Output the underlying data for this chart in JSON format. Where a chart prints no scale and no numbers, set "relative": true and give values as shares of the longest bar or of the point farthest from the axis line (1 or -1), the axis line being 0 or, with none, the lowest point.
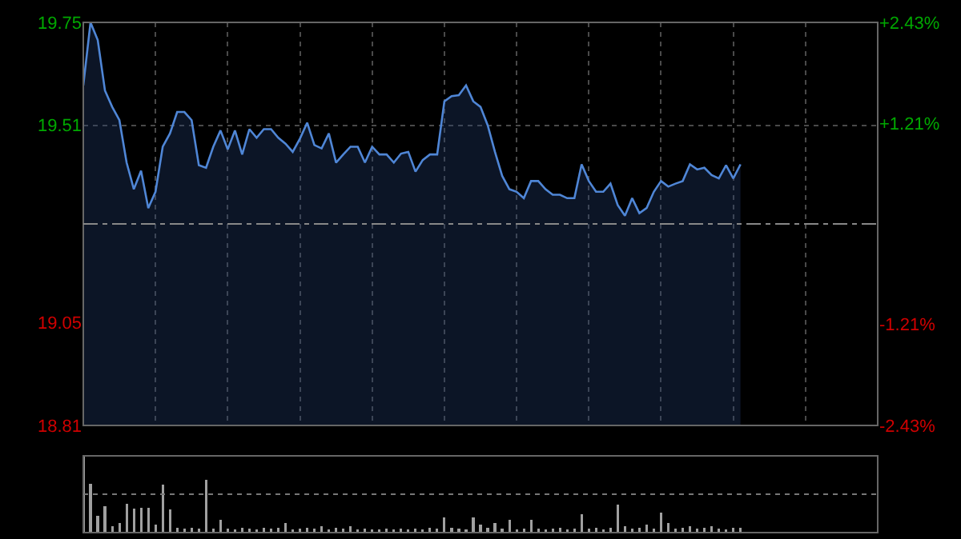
{
  "chart_data": [
    {
      "type": "area",
      "categories": [
        null,
        null,
        null,
        null,
        null,
        null,
        null,
        null,
        null,
        null,
        null,
        null,
        null,
        null,
        null,
        null,
        null,
        null,
        null,
        null,
        null,
        null,
        null,
        null,
        null,
        null,
        null,
        null,
        null,
        null,
        null,
        null,
        null,
        null,
        null,
        null,
        null,
        null,
        null,
        null,
        null,
        null,
        null,
        null,
        null,
        null,
        null,
        null,
        null,
        null,
        null,
        null,
        null,
        null,
        null,
        null,
        null,
        null,
        null,
        null,
        null,
        null,
        null,
        null,
        null,
        null,
        null,
        null,
        null,
        null,
        null,
        null,
        null,
        null,
        null,
        null,
        null,
        null,
        null,
        null,
        null,
        null,
        null,
        null,
        null,
        null,
        null,
        null,
        null,
        null,
        null,
        null,
        null,
        null,
        null,
        null,
        null,
        null,
        null,
        null,
        null,
        null,
        null,
        null,
        null,
        null,
        null,
        null,
        null,
        null,
        null
      ],
      "series": [
        {
          "color": "#4f86d6",
          "values": [
            19.603,
            19.75,
            19.709,
            19.591,
            19.553,
            19.522,
            19.423,
            19.361,
            19.404,
            19.317,
            19.355,
            19.46,
            19.491,
            19.541,
            19.541,
            19.522,
            19.417,
            19.411,
            19.46,
            19.498,
            19.454,
            19.498,
            19.442,
            19.501,
            19.481,
            19.501,
            19.501,
            19.481,
            19.467,
            19.448,
            19.479,
            19.516,
            19.464,
            19.456,
            19.491,
            19.423,
            19.442,
            19.46,
            19.46,
            19.423,
            19.46,
            19.442,
            19.442,
            19.423,
            19.444,
            19.448,
            19.402,
            19.429,
            19.442,
            19.442,
            19.566,
            19.578,
            19.58,
            19.603,
            19.566,
            19.553,
            19.51,
            19.448,
            19.392,
            19.361,
            19.355,
            19.34,
            19.38,
            19.38,
            19.361,
            19.348,
            19.348,
            19.34,
            19.34,
            19.419,
            19.38,
            19.355,
            19.355,
            19.374,
            19.324,
            19.299,
            19.34,
            19.305,
            19.317,
            19.355,
            19.38,
            19.367,
            19.374,
            19.38,
            19.419,
            19.407,
            19.411,
            19.394,
            19.386,
            19.417,
            19.386,
            19.419,
            null,
            null,
            null,
            null,
            null,
            null,
            null,
            null,
            null,
            null,
            null,
            null,
            null,
            null,
            null,
            null,
            null,
            null,
            null
          ]
        }
      ],
      "ylim": [
        18.81,
        19.75
      ],
      "yticks": [
        19.75,
        19.51,
        19.05,
        18.81
      ],
      "y2lim": [
        -2.43,
        2.43
      ],
      "y2ticks": [
        {
          "value": 2.43,
          "label": "+2.43%"
        },
        {
          "value": 1.21,
          "label": "+1.21%"
        },
        {
          "value": -1.21,
          "label": "-1.21%"
        },
        {
          "value": -2.43,
          "label": "-2.43%"
        }
      ],
      "ref_lines": [
        {
          "axis": "y",
          "value": 19.28,
          "line_style": "dashed"
        }
      ],
      "grid": true
    },
    {
      "type": "bar",
      "relative": true,
      "ref_lines": [
        {
          "axis": "y",
          "value": 0.5,
          "line_style": "dotted",
          "color": "#777777"
        }
      ],
      "color": "#a0a0a0",
      "categories": [
        null,
        null,
        null,
        null,
        null,
        null,
        null,
        null,
        null,
        null,
        null,
        null,
        null,
        null,
        null,
        null,
        null,
        null,
        null,
        null,
        null,
        null,
        null,
        null,
        null,
        null,
        null,
        null,
        null,
        null,
        null,
        null,
        null,
        null,
        null,
        null,
        null,
        null,
        null,
        null,
        null,
        null,
        null,
        null,
        null,
        null,
        null,
        null,
        null,
        null,
        null,
        null,
        null,
        null,
        null,
        null,
        null,
        null,
        null,
        null,
        null,
        null,
        null,
        null,
        null,
        null,
        null,
        null,
        null,
        null,
        null,
        null,
        null,
        null,
        null,
        null,
        null,
        null,
        null,
        null,
        null,
        null,
        null,
        null,
        null,
        null,
        null,
        null,
        null,
        null,
        null,
        null,
        null,
        null,
        null,
        null,
        null,
        null,
        null,
        null,
        null,
        null,
        null,
        null,
        null,
        null,
        null,
        null,
        null,
        null,
        null
      ],
      "values": [
        1.0,
        0.64,
        0.22,
        0.34,
        0.08,
        0.12,
        0.38,
        0.31,
        0.32,
        0.32,
        0.1,
        0.63,
        0.3,
        0.06,
        0.05,
        0.06,
        0.05,
        0.69,
        0.05,
        0.17,
        0.05,
        0.04,
        0.06,
        0.05,
        0.04,
        0.06,
        0.05,
        0.06,
        0.13,
        0.04,
        0.05,
        0.06,
        0.05,
        0.08,
        0.04,
        0.06,
        0.05,
        0.08,
        0.04,
        0.05,
        0.04,
        0.04,
        0.05,
        0.04,
        0.05,
        0.04,
        0.05,
        0.04,
        0.06,
        0.05,
        0.2,
        0.06,
        0.05,
        0.04,
        0.2,
        0.1,
        0.06,
        0.13,
        0.05,
        0.17,
        0.04,
        0.05,
        0.17,
        0.05,
        0.04,
        0.05,
        0.06,
        0.04,
        0.05,
        0.24,
        0.05,
        0.06,
        0.04,
        0.06,
        0.36,
        0.08,
        0.05,
        0.06,
        0.1,
        0.05,
        0.26,
        0.13,
        0.05,
        0.06,
        0.08,
        0.05,
        0.06,
        0.08,
        0.05,
        0.04,
        0.06,
        0.06,
        null,
        null,
        null,
        null,
        null,
        null,
        null,
        null,
        null,
        null,
        null,
        null,
        null,
        null,
        null,
        null,
        null,
        null,
        null
      ]
    }
  ]
}
